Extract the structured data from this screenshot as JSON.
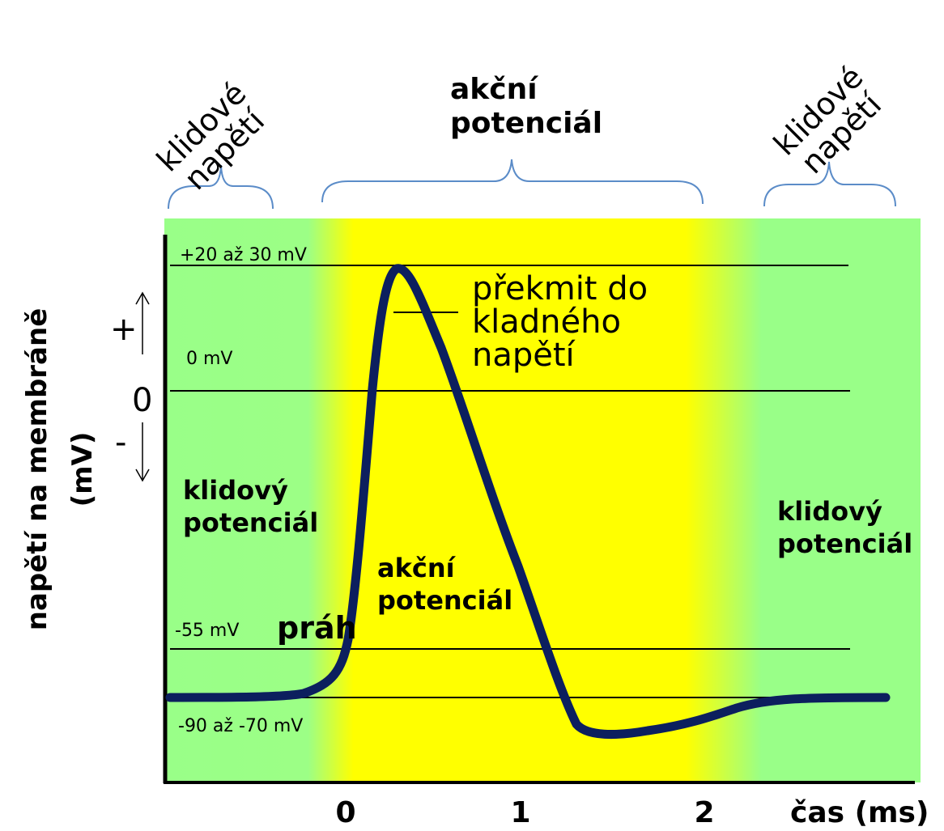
{
  "top_labels": {
    "rest_left": [
      "klidové",
      "napětí"
    ],
    "action": [
      "akční",
      "potenciál"
    ],
    "rest_right": [
      "klidové",
      "napětí"
    ]
  },
  "levels": {
    "peak": "+20 až 30 mV",
    "zero": "0 mV",
    "threshold": "-55 mV",
    "rest": "-90 až -70 mV"
  },
  "threshold_word": "práh",
  "overshoot": [
    "překmit do",
    "kladného",
    "napětí"
  ],
  "resting_left": [
    "klidový",
    "potenciál"
  ],
  "action_mid": [
    "akční",
    "potenciál"
  ],
  "resting_right": [
    "klidový",
    "potenciál"
  ],
  "y_axis": {
    "title": [
      "napětí na membráně",
      "(mV)"
    ],
    "plus": "+",
    "zero": "0",
    "minus": "-"
  },
  "x_axis": {
    "ticks": [
      "0",
      "1",
      "2"
    ],
    "label": "čas (ms)"
  },
  "colors": {
    "rest_zone": "#99ff88",
    "action_zone": "#ffff00",
    "trace": "#0c1f5e",
    "brace": "#5b8cc8"
  }
}
